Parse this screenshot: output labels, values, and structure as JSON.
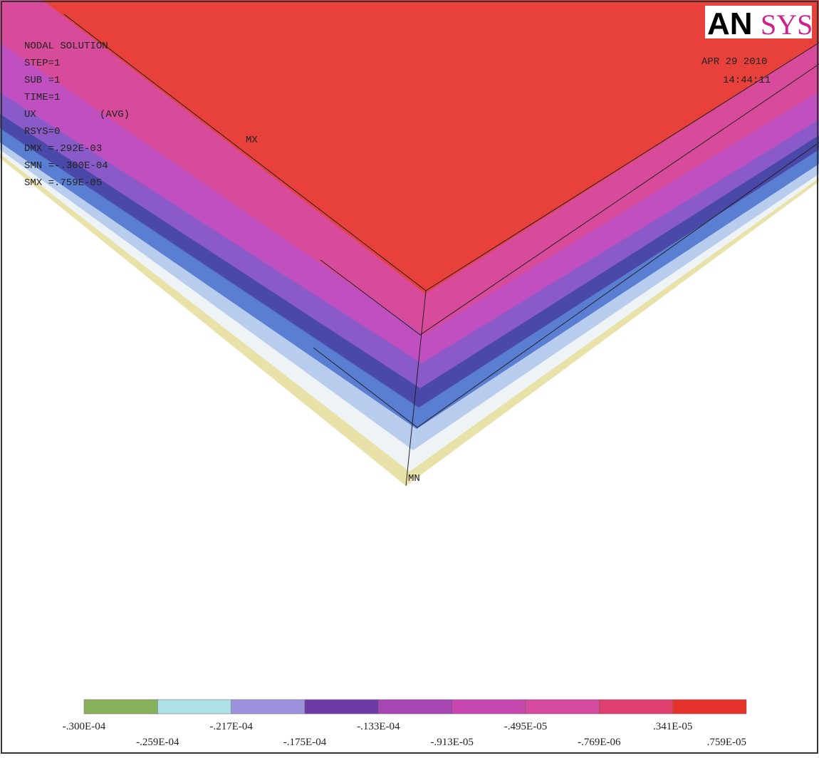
{
  "logo": {
    "part1": "AN",
    "part2": "SYS"
  },
  "info": [
    "NODAL SOLUTION",
    "STEP=1",
    "SUB =1",
    "TIME=1",
    "UX",
    "(AVG)",
    "RSYS=0",
    "DMX =.292E-03",
    "SMN =-.300E-04",
    "SMX =.759E-05"
  ],
  "date": "APR 29 2010",
  "time": "14:44:11",
  "markers": {
    "max": "MX",
    "min": "MN"
  },
  "legend": {
    "labels": [
      "-.300E-04",
      "-.259E-04",
      "-.217E-04",
      "-.175E-04",
      "-.133E-04",
      "-.913E-05",
      "-.495E-05",
      "-.769E-06",
      ".341E-05",
      ".759E-05"
    ],
    "colors": [
      "#86b25e",
      "#aee0e8",
      "#9c92dc",
      "#6e3aa6",
      "#a846b4",
      "#c848b0",
      "#d64aa0",
      "#e04070",
      "#e8322c"
    ]
  }
}
